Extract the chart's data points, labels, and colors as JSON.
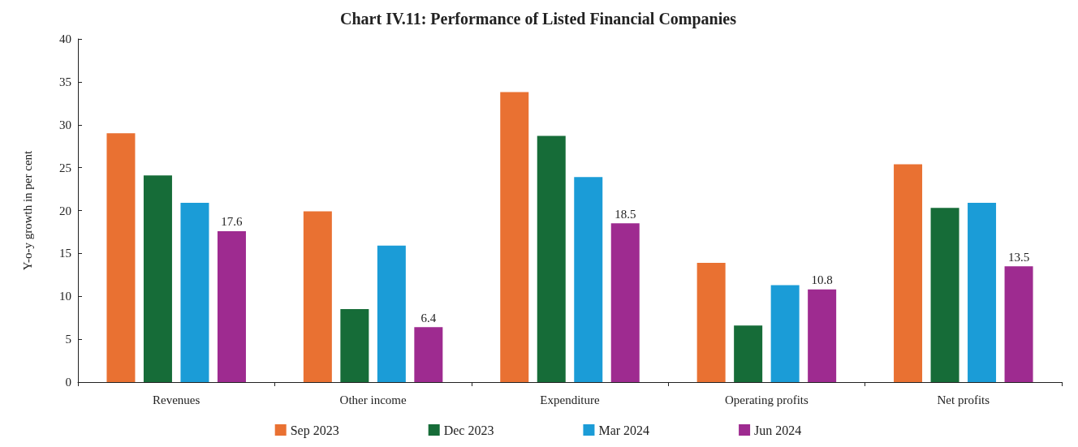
{
  "chart_data": {
    "type": "bar",
    "title": "Chart IV.11: Performance of Listed Financial Companies",
    "ylabel": "Y-o-y growth in per cent",
    "categories": [
      "Revenues",
      "Other income",
      "Expenditure",
      "Operating profits",
      "Net profits"
    ],
    "series": [
      {
        "name": "Sep 2023",
        "color": "#e97132",
        "values": [
          29.0,
          19.9,
          33.8,
          13.9,
          25.4
        ]
      },
      {
        "name": "Dec 2023",
        "color": "#166c38",
        "values": [
          24.1,
          8.5,
          28.7,
          6.6,
          20.3
        ]
      },
      {
        "name": "Mar 2024",
        "color": "#1b9cd7",
        "values": [
          20.9,
          15.9,
          23.9,
          11.3,
          20.9
        ]
      },
      {
        "name": "Jun 2024",
        "color": "#9e2b90",
        "values": [
          17.6,
          6.4,
          18.5,
          10.8,
          13.5
        ],
        "value_labels": [
          "17.6",
          "6.4",
          "18.5",
          "10.8",
          "13.5"
        ]
      }
    ],
    "ylim": [
      0,
      40
    ],
    "yticks": [
      0,
      5,
      10,
      15,
      20,
      25,
      30,
      35,
      40
    ],
    "grid": false,
    "legend": "bottom"
  }
}
